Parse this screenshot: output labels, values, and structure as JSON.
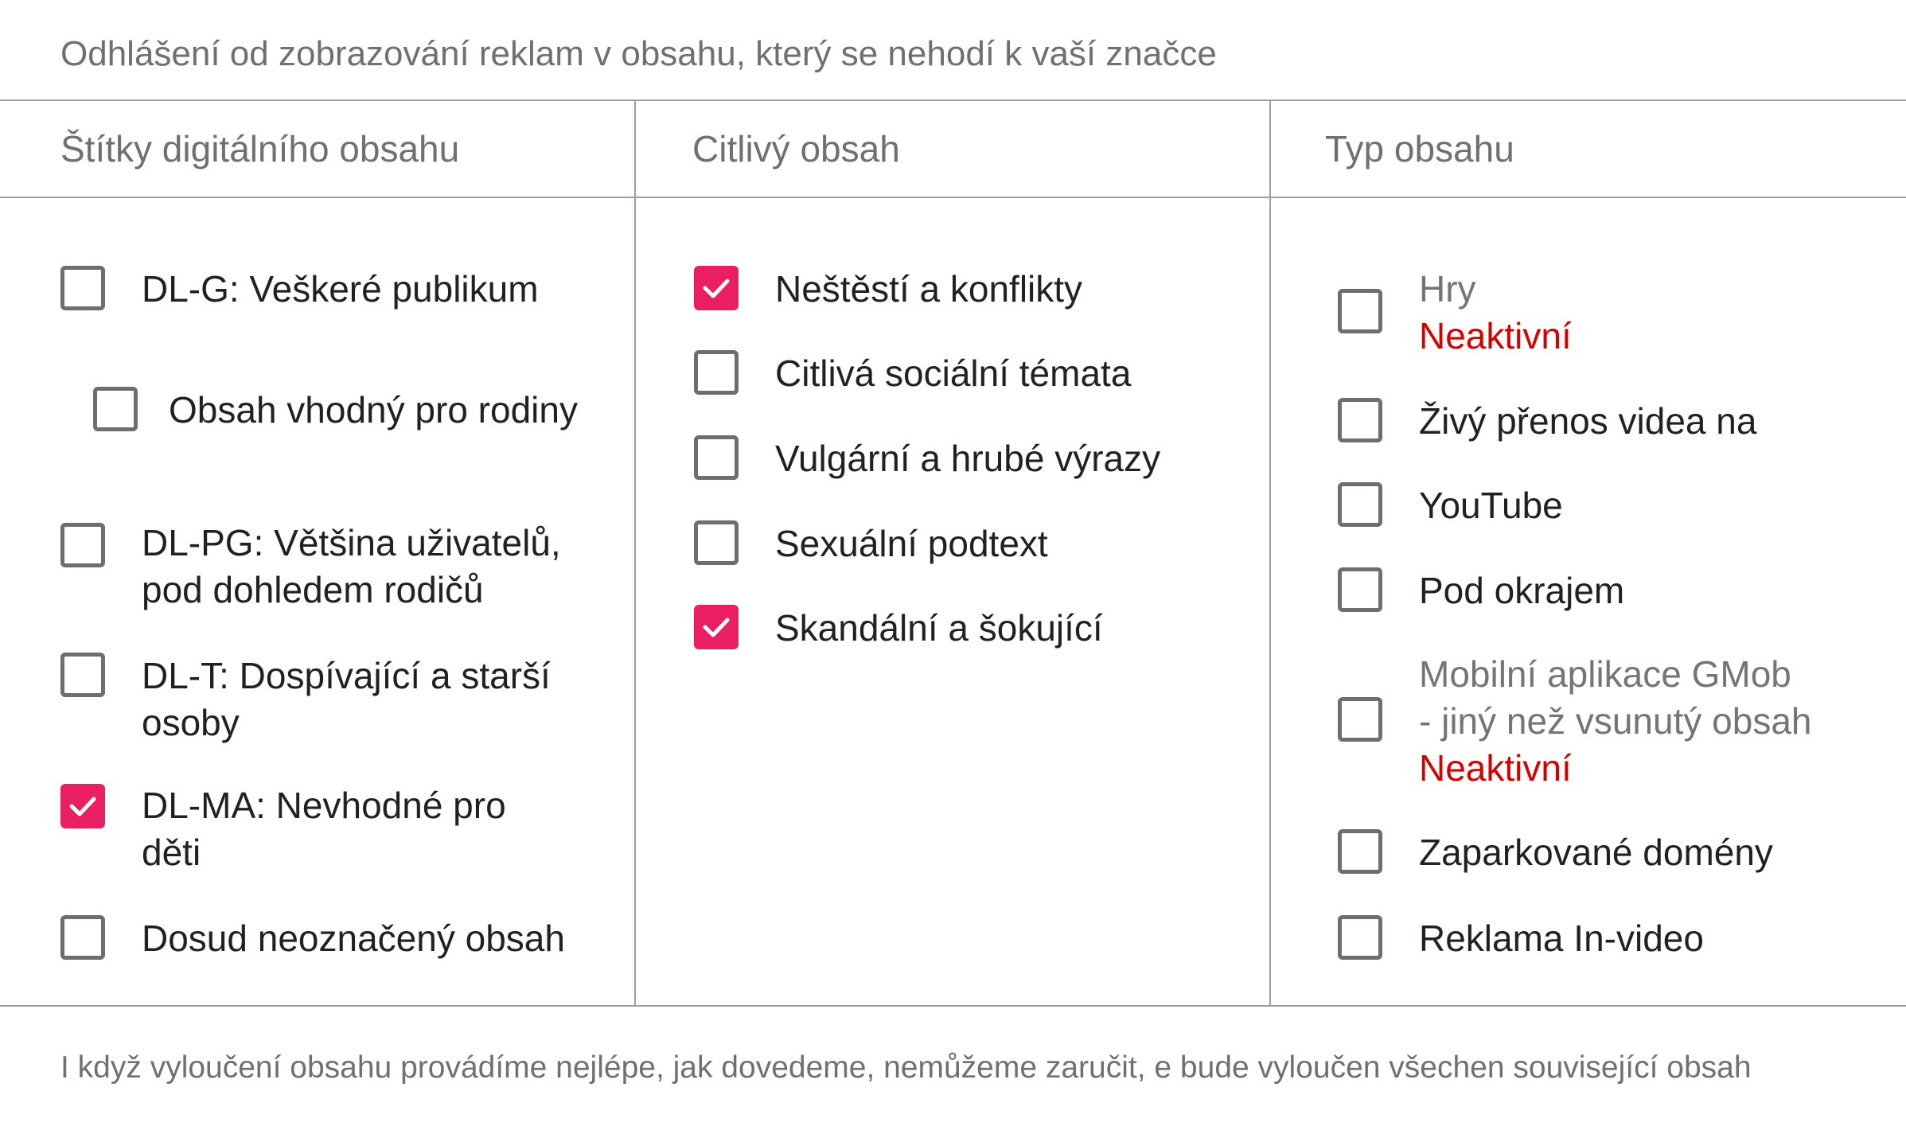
{
  "title": "Odhlášení od zobrazování reklam v obsahu, který se nehodí k vaší značce",
  "colors": {
    "accent": "#e91e63",
    "inactive": "#d50000",
    "border": "#9e9e9e"
  },
  "columns": [
    {
      "header": "Štítky digitálního obsahu",
      "items": [
        {
          "label": "DL-G: Veškeré publikum",
          "checked": false
        },
        {
          "label": "Obsah vhodný pro rodiny",
          "checked": false
        },
        {
          "label_lines": [
            "DL-PG: Většina uživatelů,",
            "pod dohledem rodičů"
          ],
          "checked": false
        },
        {
          "label_lines": [
            "DL-T: Dospívající a starší",
            "osoby"
          ],
          "checked": false
        },
        {
          "label_lines": [
            "DL-MA: Nevhodné pro",
            "děti"
          ],
          "checked": true
        },
        {
          "label": "Dosud neoznačený obsah",
          "checked": false
        }
      ]
    },
    {
      "header": "Citlivý obsah",
      "items": [
        {
          "label": "Neštěstí a konflikty",
          "checked": true
        },
        {
          "label": "Citlivá sociální témata",
          "checked": false
        },
        {
          "label": "Vulgární a hrubé výrazy",
          "checked": false
        },
        {
          "label": "Sexuální podtext",
          "checked": false
        },
        {
          "label": "Skandální a šokující",
          "checked": true
        }
      ]
    },
    {
      "header": "Typ obsahu",
      "items": [
        {
          "label": "Hry",
          "status": "Neaktivní",
          "checked": false
        },
        {
          "label": "Živý přenos videa na",
          "checked": false
        },
        {
          "label": "YouTube",
          "checked": false
        },
        {
          "label": "Pod okrajem",
          "checked": false
        },
        {
          "label_lines": [
            "Mobilní aplikace GMob",
            "- jiný než vsunutý obsah"
          ],
          "status": "Neaktivní",
          "checked": false
        },
        {
          "label": "Zaparkované domény",
          "checked": false
        },
        {
          "label": "Reklama In-video",
          "checked": false
        }
      ]
    }
  ],
  "footer": "I když vyloučení obsahu provádíme nejlépe, jak dovedeme, nemůžeme zaručit, e bude vyloučen všechen související obsah"
}
